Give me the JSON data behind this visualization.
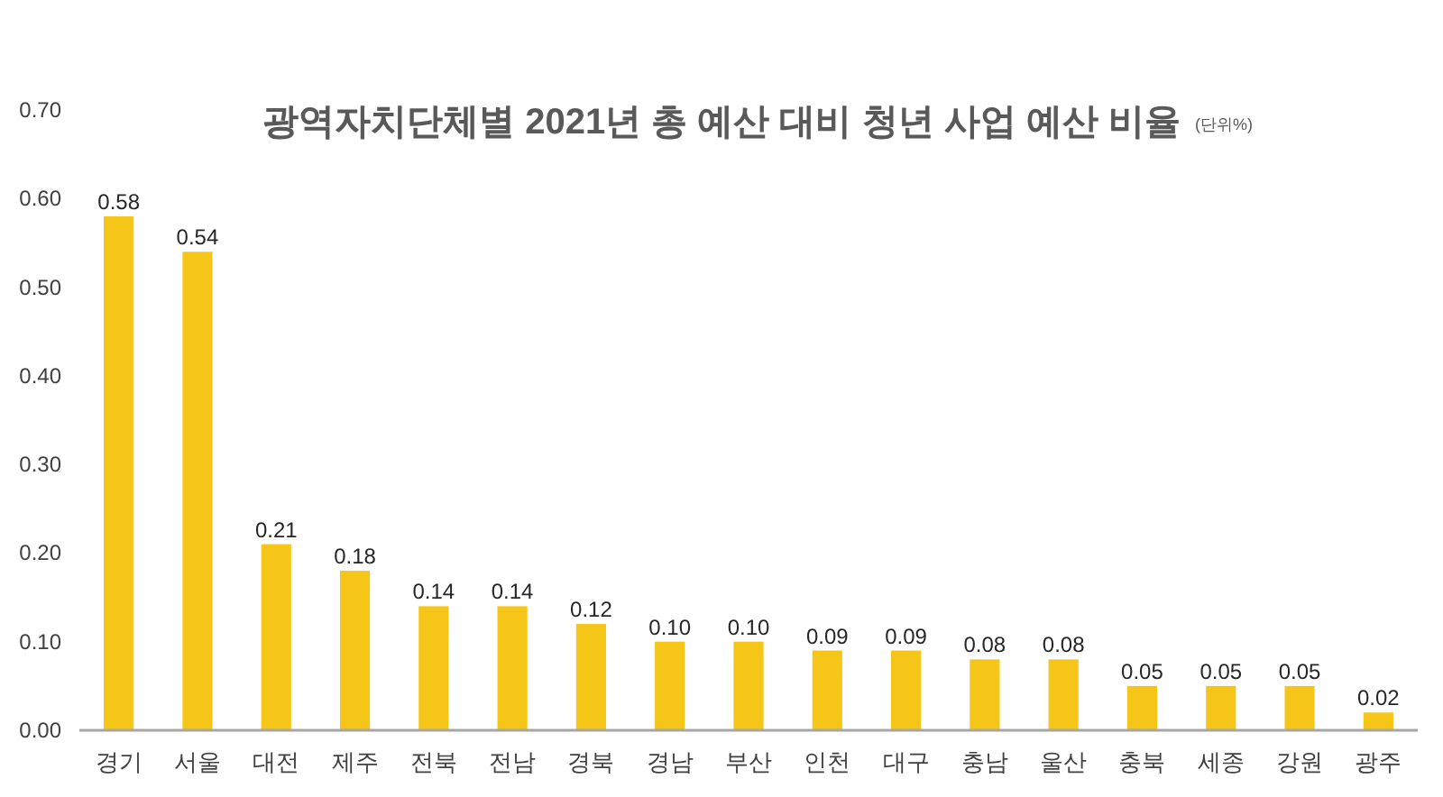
{
  "chart_data": {
    "type": "bar",
    "title": "광역자치단체별 2021년 총 예산 대비 청년 사업 예산 비율",
    "subtitle": "(단위%)",
    "categories": [
      "경기",
      "서울",
      "대전",
      "제주",
      "전북",
      "전남",
      "경북",
      "경남",
      "부산",
      "인천",
      "대구",
      "충남",
      "울산",
      "충북",
      "세종",
      "강원",
      "광주"
    ],
    "values": [
      0.58,
      0.54,
      0.21,
      0.18,
      0.14,
      0.14,
      0.12,
      0.1,
      0.1,
      0.09,
      0.09,
      0.08,
      0.08,
      0.05,
      0.05,
      0.05,
      0.02
    ],
    "value_labels": [
      "0.58",
      "0.54",
      "0.21",
      "0.18",
      "0.14",
      "0.14",
      "0.12",
      "0.10",
      "0.10",
      "0.09",
      "0.09",
      "0.08",
      "0.08",
      "0.05",
      "0.05",
      "0.05",
      "0.02"
    ],
    "color": "#f5c518",
    "ylim": [
      0,
      0.7
    ],
    "yticks": [
      {
        "value": 0,
        "label": "0.00"
      },
      {
        "value": 0.1,
        "label": "0.10"
      },
      {
        "value": 0.2,
        "label": "0.20"
      },
      {
        "value": 0.3,
        "label": "0.30"
      },
      {
        "value": 0.4,
        "label": "0.40"
      },
      {
        "value": 0.5,
        "label": "0.50"
      },
      {
        "value": 0.6,
        "label": "0.60"
      },
      {
        "value": 0.7,
        "label": "0.70"
      }
    ],
    "grid": false
  }
}
